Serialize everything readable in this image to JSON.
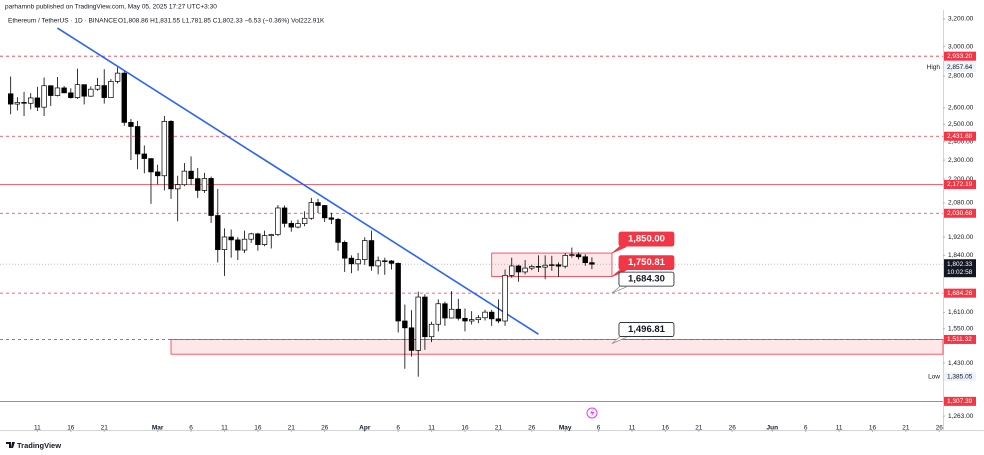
{
  "header": {
    "published": "parhamnb published on TradingView.com, May 05, 2025 17:27 UTC+3:30",
    "symbol": "Ethereum / TetherUS · 1D · BINANCE",
    "ohlc": "O1,808.86 H1,831.55 L1,781.85 C1,802.33 −6.53 (−0.36%) Vol222.91K"
  },
  "footer": {
    "brand": "TradingView"
  },
  "chart_data": {
    "type": "candlestick",
    "log_scale": true,
    "grid": false,
    "up_color": "#ffffff",
    "down_color": "#000000",
    "x": [
      "2025-02-07",
      "2025-02-08",
      "2025-02-09",
      "2025-02-10",
      "2025-02-11",
      "2025-02-12",
      "2025-02-13",
      "2025-02-14",
      "2025-02-15",
      "2025-02-16",
      "2025-02-17",
      "2025-02-18",
      "2025-02-19",
      "2025-02-20",
      "2025-02-21",
      "2025-02-22",
      "2025-02-23",
      "2025-02-24",
      "2025-02-25",
      "2025-02-26",
      "2025-02-27",
      "2025-02-28",
      "2025-03-01",
      "2025-03-02",
      "2025-03-03",
      "2025-03-04",
      "2025-03-05",
      "2025-03-06",
      "2025-03-07",
      "2025-03-08",
      "2025-03-09",
      "2025-03-10",
      "2025-03-11",
      "2025-03-12",
      "2025-03-13",
      "2025-03-14",
      "2025-03-15",
      "2025-03-16",
      "2025-03-17",
      "2025-03-18",
      "2025-03-19",
      "2025-03-20",
      "2025-03-21",
      "2025-03-22",
      "2025-03-23",
      "2025-03-24",
      "2025-03-25",
      "2025-03-26",
      "2025-03-27",
      "2025-03-28",
      "2025-03-29",
      "2025-03-30",
      "2025-03-31",
      "2025-04-01",
      "2025-04-02",
      "2025-04-03",
      "2025-04-04",
      "2025-04-05",
      "2025-04-06",
      "2025-04-07",
      "2025-04-08",
      "2025-04-09",
      "2025-04-10",
      "2025-04-11",
      "2025-04-12",
      "2025-04-13",
      "2025-04-14",
      "2025-04-15",
      "2025-04-16",
      "2025-04-17",
      "2025-04-18",
      "2025-04-19",
      "2025-04-20",
      "2025-04-21",
      "2025-04-22",
      "2025-04-23",
      "2025-04-24",
      "2025-04-25",
      "2025-04-26",
      "2025-04-27",
      "2025-04-28",
      "2025-04-29",
      "2025-04-30",
      "2025-05-01",
      "2025-05-02",
      "2025-05-03",
      "2025-05-04",
      "2025-05-05"
    ],
    "open": [
      2686,
      2622,
      2632,
      2627,
      2660,
      2603,
      2737,
      2675,
      2723,
      2692,
      2662,
      2744,
      2671,
      2715,
      2738,
      2662,
      2765,
      2819,
      2512,
      2488,
      2333,
      2308,
      2237,
      2217,
      2518,
      2150,
      2171,
      2241,
      2202,
      2142,
      2203,
      2020,
      1865,
      1921,
      1908,
      1863,
      1911,
      1935,
      1887,
      1927,
      1932,
      2056,
      1983,
      1966,
      1982,
      2007,
      2082,
      2068,
      2009,
      2002,
      1897,
      1828,
      1804,
      1822,
      1905,
      1795,
      1817,
      1816,
      1806,
      1578,
      1553,
      1473,
      1669,
      1521,
      1566,
      1643,
      1589,
      1622,
      1588,
      1578,
      1583,
      1590,
      1611,
      1586,
      1578,
      1756,
      1795,
      1770,
      1786,
      1793,
      1790,
      1798,
      1800,
      1794,
      1840,
      1843,
      1834,
      1808.86
    ],
    "high": [
      2797,
      2665,
      2698,
      2690,
      2730,
      2790,
      2740,
      2794,
      2735,
      2721,
      2849,
      2745,
      2733,
      2788,
      2845,
      2780,
      2857.64,
      2830,
      2532,
      2521,
      2380,
      2310,
      2275,
      2550,
      2525,
      2217,
      2284,
      2320,
      2258,
      2232,
      2213,
      2150,
      1960,
      1955,
      1920,
      1950,
      1940,
      1940,
      1950,
      1935,
      2070,
      2068,
      1996,
      2000,
      2040,
      2105,
      2100,
      2070,
      2033,
      2008,
      1905,
      1840,
      1850,
      1920,
      1950,
      1835,
      1830,
      1820,
      1810,
      1640,
      1618,
      1690,
      1680,
      1575,
      1660,
      1651,
      1692,
      1662,
      1625,
      1615,
      1600,
      1620,
      1620,
      1660,
      1780,
      1830,
      1800,
      1820,
      1800,
      1840,
      1840,
      1838,
      1810,
      1850,
      1874,
      1853,
      1845,
      1831.55
    ],
    "low": [
      2560,
      2583,
      2550,
      2590,
      2580,
      2550,
      2610,
      2670,
      2690,
      2656,
      2653,
      2620,
      2667,
      2705,
      2625,
      2660,
      2752,
      2492,
      2300,
      2251,
      2230,
      2076,
      2172,
      2142,
      2100,
      1993,
      2163,
      2170,
      2105,
      2130,
      1985,
      1810,
      1754,
      1830,
      1820,
      1850,
      1895,
      1860,
      1880,
      1870,
      1925,
      1965,
      1945,
      1960,
      1970,
      2000,
      2032,
      1990,
      1980,
      1860,
      1770,
      1765,
      1775,
      1800,
      1775,
      1760,
      1758,
      1780,
      1536,
      1411,
      1452,
      1385.05,
      1475,
      1502,
      1540,
      1560,
      1588,
      1580,
      1540,
      1565,
      1570,
      1580,
      1560,
      1570,
      1560,
      1746,
      1730,
      1760,
      1777,
      1770,
      1740,
      1775,
      1750,
      1785,
      1830,
      1823,
      1796,
      1781.85
    ],
    "close": [
      2622,
      2632,
      2627,
      2660,
      2603,
      2737,
      2675,
      2723,
      2692,
      2662,
      2744,
      2671,
      2715,
      2738,
      2662,
      2765,
      2819,
      2512,
      2488,
      2333,
      2308,
      2237,
      2217,
      2518,
      2150,
      2171,
      2241,
      2202,
      2142,
      2203,
      2020,
      1865,
      1921,
      1908,
      1863,
      1911,
      1935,
      1887,
      1927,
      1932,
      2056,
      1983,
      1966,
      1982,
      2007,
      2082,
      2068,
      2009,
      2002,
      1897,
      1828,
      1804,
      1822,
      1905,
      1795,
      1817,
      1816,
      1806,
      1578,
      1553,
      1473,
      1669,
      1521,
      1566,
      1643,
      1589,
      1622,
      1588,
      1578,
      1583,
      1590,
      1611,
      1586,
      1578,
      1756,
      1795,
      1770,
      1786,
      1793,
      1790,
      1798,
      1800,
      1794,
      1840,
      1843,
      1834,
      1808.86,
      1802.33
    ],
    "xlim": [
      "2025-02-06",
      "2025-06-27"
    ],
    "xticks": [
      {
        "value": "2025-02-11",
        "label": "11"
      },
      {
        "value": "2025-02-16",
        "label": "16"
      },
      {
        "value": "2025-02-21",
        "label": "21"
      },
      {
        "value": "2025-03-01",
        "label": "Mar"
      },
      {
        "value": "2025-03-06",
        "label": "6"
      },
      {
        "value": "2025-03-11",
        "label": "11"
      },
      {
        "value": "2025-03-16",
        "label": "16"
      },
      {
        "value": "2025-03-21",
        "label": "21"
      },
      {
        "value": "2025-03-26",
        "label": "26"
      },
      {
        "value": "2025-04-01",
        "label": "Apr"
      },
      {
        "value": "2025-04-06",
        "label": "6"
      },
      {
        "value": "2025-04-11",
        "label": "11"
      },
      {
        "value": "2025-04-16",
        "label": "16"
      },
      {
        "value": "2025-04-21",
        "label": "21"
      },
      {
        "value": "2025-04-26",
        "label": "26"
      },
      {
        "value": "2025-05-01",
        "label": "May"
      },
      {
        "value": "2025-05-06",
        "label": "6"
      },
      {
        "value": "2025-05-11",
        "label": "11"
      },
      {
        "value": "2025-05-16",
        "label": "16"
      },
      {
        "value": "2025-05-21",
        "label": "21"
      },
      {
        "value": "2025-05-26",
        "label": "26"
      },
      {
        "value": "2025-06-01",
        "label": "Jun"
      },
      {
        "value": "2025-06-06",
        "label": "6"
      },
      {
        "value": "2025-06-11",
        "label": "11"
      },
      {
        "value": "2025-06-16",
        "label": "16"
      },
      {
        "value": "2025-06-21",
        "label": "21"
      },
      {
        "value": "2025-06-26",
        "label": "26"
      }
    ],
    "ylim": [
      1237,
      3268
    ],
    "yticks": [
      {
        "value": 3200,
        "label": "3,200.00"
      },
      {
        "value": 3000,
        "label": "3,000.00"
      },
      {
        "value": 2800,
        "label": "2,800.00"
      },
      {
        "value": 2600,
        "label": "2,600.00"
      },
      {
        "value": 2500,
        "label": "2,500.00"
      },
      {
        "value": 2400,
        "label": "2,400.00"
      },
      {
        "value": 2300,
        "label": "2,300.00"
      },
      {
        "value": 2200,
        "label": "2,200.00"
      },
      {
        "value": 2080,
        "label": "2,080.00"
      },
      {
        "value": 1920,
        "label": "1,920.00"
      },
      {
        "value": 1840,
        "label": "1,840.00"
      },
      {
        "value": 1610,
        "label": "1,610.00"
      },
      {
        "value": 1550,
        "label": "1,550.00"
      },
      {
        "value": 1430,
        "label": "1,430.00"
      },
      {
        "value": 1263,
        "label": "1,263.00"
      }
    ],
    "levels": [
      {
        "value": 2933.2,
        "label": "2,933.20",
        "dashed": true
      },
      {
        "value": 2431.88,
        "label": "2,431.88",
        "dashed": true
      },
      {
        "value": 2172.19,
        "label": "2,172.19",
        "dashed": false
      },
      {
        "value": 2030.68,
        "label": "2,030.68",
        "dashed": true
      },
      {
        "value": 1684.26,
        "label": "1,684.26",
        "dashed": true
      },
      {
        "value": 1511.32,
        "label": "1,511.32",
        "dashed": true
      },
      {
        "value": 1307.39,
        "label": "1,307.39",
        "dashed": false
      }
    ],
    "level_color": "#f23645",
    "current": {
      "value": 1802.33,
      "label": "1,802.33",
      "countdown": "10:02:58"
    },
    "extremes": [
      {
        "text": "High",
        "value": 2857.64,
        "label": "2,857.64"
      },
      {
        "text": "Low",
        "value": 1385.05,
        "label": "1,385.05"
      }
    ],
    "zones": [
      {
        "from": "2025-04-20",
        "to": "2025-05-08",
        "low": 1750.81,
        "high": 1850
      },
      {
        "from": "2025-03-03",
        "to": "2025-06-27",
        "low": 1460,
        "high": 1511.32
      }
    ],
    "callouts": [
      {
        "value": 1850,
        "label": "1,850.00",
        "style": "red"
      },
      {
        "value": 1750.81,
        "label": "1,750.81",
        "style": "red"
      },
      {
        "value": 1684.3,
        "label": "1,684.30",
        "style": "white"
      },
      {
        "value": 1496.81,
        "label": "1,496.81",
        "style": "white"
      }
    ],
    "callout_anchor": "2025-05-08",
    "trendline": {
      "color": "#2962ff",
      "points": [
        {
          "x": "2025-02-14",
          "y": 3133
        },
        {
          "x": "2025-04-27",
          "y": 1530
        }
      ]
    }
  }
}
